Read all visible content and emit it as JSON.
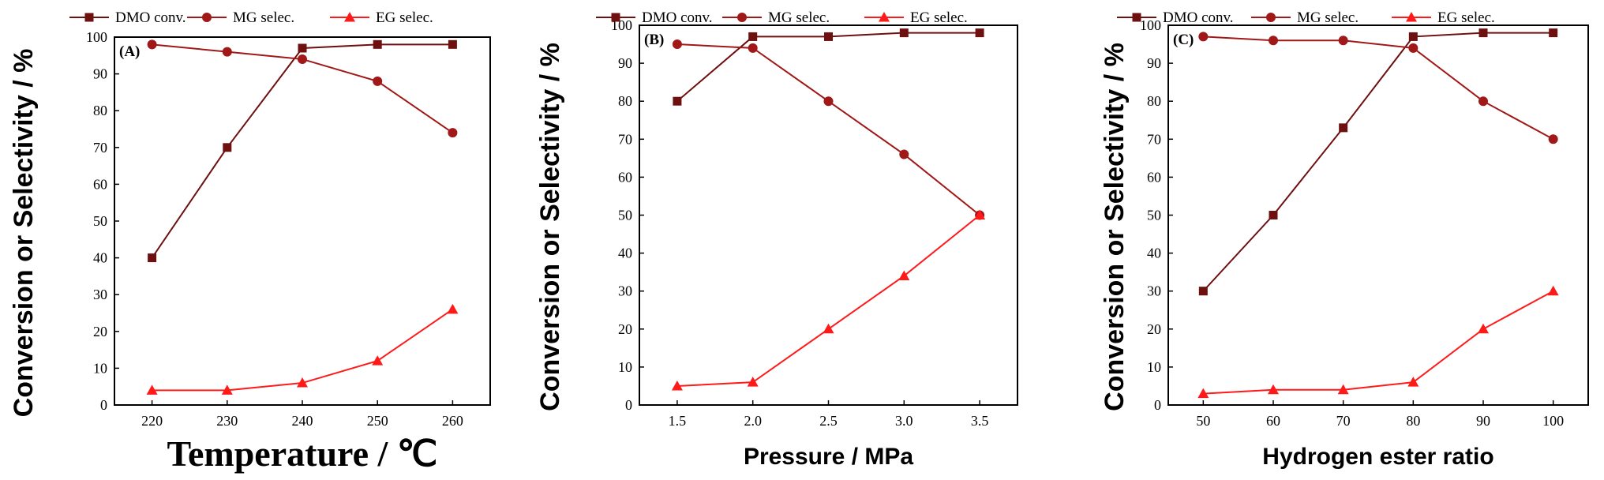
{
  "colors": {
    "dmo": "#6e1010",
    "mg": "#a01818",
    "eg": "#ff1a1a"
  },
  "chart_data": [
    {
      "type": "line",
      "panel_label": "(A)",
      "xlabel": "Temperature / ℃",
      "ylabel": "Conversion or Selectivity / %",
      "x": [
        220,
        230,
        240,
        250,
        260
      ],
      "x_tick_labels": [
        "220",
        "230",
        "240",
        "250",
        "260"
      ],
      "xlim": [
        215,
        265
      ],
      "ylim": [
        0,
        100
      ],
      "y_ticks": [
        0,
        10,
        20,
        30,
        40,
        50,
        60,
        70,
        80,
        90,
        100
      ],
      "legend_position": "top",
      "series": [
        {
          "name": "DMO conv.",
          "values": [
            40,
            70,
            97,
            98,
            98
          ]
        },
        {
          "name": "MG selec.",
          "values": [
            98,
            96,
            94,
            88,
            74
          ]
        },
        {
          "name": "EG selec.",
          "values": [
            4,
            4,
            6,
            12,
            26
          ]
        }
      ]
    },
    {
      "type": "line",
      "panel_label": "(B)",
      "xlabel": "Pressure / MPa",
      "ylabel": "Conversion or Selectivity / %",
      "x": [
        1.5,
        2.0,
        2.5,
        3.0,
        3.5
      ],
      "x_tick_labels": [
        "1.5",
        "2.0",
        "2.5",
        "3.0",
        "3.5"
      ],
      "xlim": [
        1.25,
        3.75
      ],
      "ylim": [
        0,
        100
      ],
      "y_ticks": [
        0,
        10,
        20,
        30,
        40,
        50,
        60,
        70,
        80,
        90,
        100
      ],
      "legend_position": "top",
      "series": [
        {
          "name": "DMO conv.",
          "values": [
            80,
            97,
            97,
            98,
            98
          ]
        },
        {
          "name": "MG selec.",
          "values": [
            95,
            94,
            80,
            66,
            50
          ]
        },
        {
          "name": "EG selec.",
          "values": [
            5,
            6,
            20,
            34,
            50
          ]
        }
      ]
    },
    {
      "type": "line",
      "panel_label": "(C)",
      "xlabel": "Hydrogen ester ratio",
      "ylabel": "Conversion or Selectivity / %",
      "x": [
        50,
        60,
        70,
        80,
        90,
        100
      ],
      "x_tick_labels": [
        "50",
        "60",
        "70",
        "80",
        "90",
        "100"
      ],
      "xlim": [
        45,
        105
      ],
      "ylim": [
        0,
        100
      ],
      "y_ticks": [
        0,
        10,
        20,
        30,
        40,
        50,
        60,
        70,
        80,
        90,
        100
      ],
      "legend_position": "top",
      "series": [
        {
          "name": "DMO conv.",
          "values": [
            30,
            50,
            73,
            97,
            98,
            98
          ]
        },
        {
          "name": "MG selec.",
          "values": [
            97,
            96,
            96,
            94,
            80,
            70
          ]
        },
        {
          "name": "EG selec.",
          "values": [
            3,
            4,
            4,
            6,
            20,
            30
          ]
        }
      ]
    }
  ]
}
